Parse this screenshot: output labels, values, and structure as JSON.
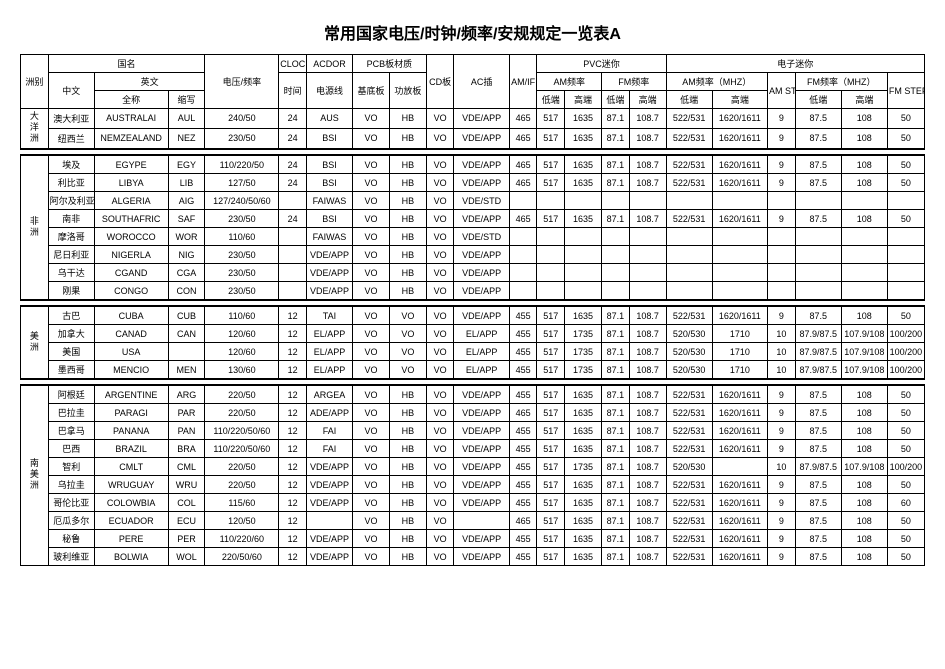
{
  "title": "常用国家电压/时钟/频率/安规规定一览表A",
  "headers": {
    "continent": "洲别",
    "country": "国名",
    "chinese": "中文",
    "english": "英文",
    "fullname": "全称",
    "abbr": "缩写",
    "voltage": "电压/频率",
    "clock": "CLOCK",
    "time": "时间",
    "acdor": "ACDOR",
    "powerline": "电源线",
    "pcb": "PCB板材质",
    "baseboard": "基底板",
    "ampboard": "功放板",
    "cdboard": "CD板",
    "acplug": "AC插",
    "amif": "AM/IF",
    "pvc": "PVC迷你",
    "amfreq": "AM频率",
    "fmfreq": "FM频率",
    "low": "低端",
    "high": "高端",
    "digital": "电子迷你",
    "amfreqmhz": "AM频率（MHZ）",
    "amstep": "AM STEP",
    "fmfreqmhz": "FM频率（MHZ）",
    "fmstep": "FM STEP"
  },
  "groups": [
    {
      "continent": "大洋洲",
      "rows": [
        {
          "cn": "澳大利亚",
          "en": "AUSTRALAI",
          "ab": "AUL",
          "v": "240/50",
          "t": "24",
          "pl": "AUS",
          "bb": "VO",
          "ab2": "HB",
          "cd": "VO",
          "ac": "VDE/APP",
          "amif": "465",
          "amL": "517",
          "amH": "1635",
          "fmL": "87.1",
          "fmH": "108.7",
          "damL": "522/531",
          "damH": "1620/1611",
          "ams": "9",
          "dfmL": "87.5",
          "dfmH": "108",
          "fms": "50"
        },
        {
          "cn": "纽西兰",
          "en": "NEMZEALAND",
          "ab": "NEZ",
          "v": "230/50",
          "t": "24",
          "pl": "BSI",
          "bb": "VO",
          "ab2": "HB",
          "cd": "VO",
          "ac": "VDE/APP",
          "amif": "465",
          "amL": "517",
          "amH": "1635",
          "fmL": "87.1",
          "fmH": "108.7",
          "damL": "522/531",
          "damH": "1620/1611",
          "ams": "9",
          "dfmL": "87.5",
          "dfmH": "108",
          "fms": "50"
        }
      ]
    },
    {
      "continent": "非洲",
      "rows": [
        {
          "cn": "埃及",
          "en": "EGYPE",
          "ab": "EGY",
          "v": "110/220/50",
          "t": "24",
          "pl": "BSI",
          "bb": "VO",
          "ab2": "HB",
          "cd": "VO",
          "ac": "VDE/APP",
          "amif": "465",
          "amL": "517",
          "amH": "1635",
          "fmL": "87.1",
          "fmH": "108.7",
          "damL": "522/531",
          "damH": "1620/1611",
          "ams": "9",
          "dfmL": "87.5",
          "dfmH": "108",
          "fms": "50"
        },
        {
          "cn": "利比亚",
          "en": "LIBYA",
          "ab": "LIB",
          "v": "127/50",
          "t": "24",
          "pl": "BSI",
          "bb": "VO",
          "ab2": "HB",
          "cd": "VO",
          "ac": "VDE/APP",
          "amif": "465",
          "amL": "517",
          "amH": "1635",
          "fmL": "87.1",
          "fmH": "108.7",
          "damL": "522/531",
          "damH": "1620/1611",
          "ams": "9",
          "dfmL": "87.5",
          "dfmH": "108",
          "fms": "50"
        },
        {
          "cn": "阿尔及利亚",
          "en": "ALGERIA",
          "ab": "AIG",
          "v": "127/240/50/60",
          "t": "",
          "pl": "FAIWAS",
          "bb": "VO",
          "ab2": "HB",
          "cd": "VO",
          "ac": "VDE/STD",
          "amif": "",
          "amL": "",
          "amH": "",
          "fmL": "",
          "fmH": "",
          "damL": "",
          "damH": "",
          "ams": "",
          "dfmL": "",
          "dfmH": "",
          "fms": ""
        },
        {
          "cn": "南非",
          "en": "SOUTHAFRIC",
          "ab": "SAF",
          "v": "230/50",
          "t": "24",
          "pl": "BSI",
          "bb": "VO",
          "ab2": "HB",
          "cd": "VO",
          "ac": "VDE/APP",
          "amif": "465",
          "amL": "517",
          "amH": "1635",
          "fmL": "87.1",
          "fmH": "108.7",
          "damL": "522/531",
          "damH": "1620/1611",
          "ams": "9",
          "dfmL": "87.5",
          "dfmH": "108",
          "fms": "50"
        },
        {
          "cn": "摩洛哥",
          "en": "WOROCCO",
          "ab": "WOR",
          "v": "110/60",
          "t": "",
          "pl": "FAIWAS",
          "bb": "VO",
          "ab2": "HB",
          "cd": "VO",
          "ac": "VDE/STD",
          "amif": "",
          "amL": "",
          "amH": "",
          "fmL": "",
          "fmH": "",
          "damL": "",
          "damH": "",
          "ams": "",
          "dfmL": "",
          "dfmH": "",
          "fms": ""
        },
        {
          "cn": "尼日利亚",
          "en": "NIGERLA",
          "ab": "NIG",
          "v": "230/50",
          "t": "",
          "pl": "VDE/APP",
          "bb": "VO",
          "ab2": "HB",
          "cd": "VO",
          "ac": "VDE/APP",
          "amif": "",
          "amL": "",
          "amH": "",
          "fmL": "",
          "fmH": "",
          "damL": "",
          "damH": "",
          "ams": "",
          "dfmL": "",
          "dfmH": "",
          "fms": ""
        },
        {
          "cn": "乌干达",
          "en": "CGAND",
          "ab": "CGA",
          "v": "230/50",
          "t": "",
          "pl": "VDE/APP",
          "bb": "VO",
          "ab2": "HB",
          "cd": "VO",
          "ac": "VDE/APP",
          "amif": "",
          "amL": "",
          "amH": "",
          "fmL": "",
          "fmH": "",
          "damL": "",
          "damH": "",
          "ams": "",
          "dfmL": "",
          "dfmH": "",
          "fms": ""
        },
        {
          "cn": "刚果",
          "en": "CONGO",
          "ab": "CON",
          "v": "230/50",
          "t": "",
          "pl": "VDE/APP",
          "bb": "VO",
          "ab2": "HB",
          "cd": "VO",
          "ac": "VDE/APP",
          "amif": "",
          "amL": "",
          "amH": "",
          "fmL": "",
          "fmH": "",
          "damL": "",
          "damH": "",
          "ams": "",
          "dfmL": "",
          "dfmH": "",
          "fms": ""
        }
      ]
    },
    {
      "continent": "美洲",
      "rows": [
        {
          "cn": "古巴",
          "en": "CUBA",
          "ab": "CUB",
          "v": "110/60",
          "t": "12",
          "pl": "TAI",
          "bb": "VO",
          "ab2": "VO",
          "cd": "VO",
          "ac": "VDE/APP",
          "amif": "455",
          "amL": "517",
          "amH": "1635",
          "fmL": "87.1",
          "fmH": "108.7",
          "damL": "522/531",
          "damH": "1620/1611",
          "ams": "9",
          "dfmL": "87.5",
          "dfmH": "108",
          "fms": "50"
        },
        {
          "cn": "加拿大",
          "en": "CANAD",
          "ab": "CAN",
          "v": "120/60",
          "t": "12",
          "pl": "EL/APP",
          "bb": "VO",
          "ab2": "VO",
          "cd": "VO",
          "ac": "EL/APP",
          "amif": "455",
          "amL": "517",
          "amH": "1735",
          "fmL": "87.1",
          "fmH": "108.7",
          "damL": "520/530",
          "damH": "1710",
          "ams": "10",
          "dfmL": "87.9/87.5",
          "dfmH": "107.9/108",
          "fms": "100/200"
        },
        {
          "cn": "美国",
          "en": "USA",
          "ab": "",
          "v": "120/60",
          "t": "12",
          "pl": "EL/APP",
          "bb": "VO",
          "ab2": "VO",
          "cd": "VO",
          "ac": "EL/APP",
          "amif": "455",
          "amL": "517",
          "amH": "1735",
          "fmL": "87.1",
          "fmH": "108.7",
          "damL": "520/530",
          "damH": "1710",
          "ams": "10",
          "dfmL": "87.9/87.5",
          "dfmH": "107.9/108",
          "fms": "100/200"
        },
        {
          "cn": "墨西哥",
          "en": "MENCIO",
          "ab": "MEN",
          "v": "130/60",
          "t": "12",
          "pl": "EL/APP",
          "bb": "VO",
          "ab2": "VO",
          "cd": "VO",
          "ac": "EL/APP",
          "amif": "455",
          "amL": "517",
          "amH": "1735",
          "fmL": "87.1",
          "fmH": "108.7",
          "damL": "520/530",
          "damH": "1710",
          "ams": "10",
          "dfmL": "87.9/87.5",
          "dfmH": "107.9/108",
          "fms": "100/200"
        }
      ]
    },
    {
      "continent": "南美洲",
      "rows": [
        {
          "cn": "阿根廷",
          "en": "ARGENTINE",
          "ab": "ARG",
          "v": "220/50",
          "t": "12",
          "pl": "ARGEA",
          "bb": "VO",
          "ab2": "HB",
          "cd": "VO",
          "ac": "VDE/APP",
          "amif": "455",
          "amL": "517",
          "amH": "1635",
          "fmL": "87.1",
          "fmH": "108.7",
          "damL": "522/531",
          "damH": "1620/1611",
          "ams": "9",
          "dfmL": "87.5",
          "dfmH": "108",
          "fms": "50"
        },
        {
          "cn": "巴拉圭",
          "en": "PARAGI",
          "ab": "PAR",
          "v": "220/50",
          "t": "12",
          "pl": "ADE/APP",
          "bb": "VO",
          "ab2": "HB",
          "cd": "VO",
          "ac": "VDE/APP",
          "amif": "465",
          "amL": "517",
          "amH": "1635",
          "fmL": "87.1",
          "fmH": "108.7",
          "damL": "522/531",
          "damH": "1620/1611",
          "ams": "9",
          "dfmL": "87.5",
          "dfmH": "108",
          "fms": "50"
        },
        {
          "cn": "巴拿马",
          "en": "PANANA",
          "ab": "PAN",
          "v": "110/220/50/60",
          "t": "12",
          "pl": "FAI",
          "bb": "VO",
          "ab2": "HB",
          "cd": "VO",
          "ac": "VDE/APP",
          "amif": "455",
          "amL": "517",
          "amH": "1635",
          "fmL": "87.1",
          "fmH": "108.7",
          "damL": "522/531",
          "damH": "1620/1611",
          "ams": "9",
          "dfmL": "87.5",
          "dfmH": "108",
          "fms": "50"
        },
        {
          "cn": "巴西",
          "en": "BRAZIL",
          "ab": "BRA",
          "v": "110/220/50/60",
          "t": "12",
          "pl": "FAI",
          "bb": "VO",
          "ab2": "HB",
          "cd": "VO",
          "ac": "VDE/APP",
          "amif": "455",
          "amL": "517",
          "amH": "1635",
          "fmL": "87.1",
          "fmH": "108.7",
          "damL": "522/531",
          "damH": "1620/1611",
          "ams": "9",
          "dfmL": "87.5",
          "dfmH": "108",
          "fms": "50"
        },
        {
          "cn": "智利",
          "en": "CMLT",
          "ab": "CML",
          "v": "220/50",
          "t": "12",
          "pl": "VDE/APP",
          "bb": "VO",
          "ab2": "HB",
          "cd": "VO",
          "ac": "VDE/APP",
          "amif": "455",
          "amL": "517",
          "amH": "1735",
          "fmL": "87.1",
          "fmH": "108.7",
          "damL": "520/530",
          "damH": "",
          "ams": "10",
          "dfmL": "87.9/87.5",
          "dfmH": "107.9/108",
          "fms": "100/200"
        },
        {
          "cn": "乌拉圭",
          "en": "WRUGUAY",
          "ab": "WRU",
          "v": "220/50",
          "t": "12",
          "pl": "VDE/APP",
          "bb": "VO",
          "ab2": "HB",
          "cd": "VO",
          "ac": "VDE/APP",
          "amif": "455",
          "amL": "517",
          "amH": "1635",
          "fmL": "87.1",
          "fmH": "108.7",
          "damL": "522/531",
          "damH": "1620/1611",
          "ams": "9",
          "dfmL": "87.5",
          "dfmH": "108",
          "fms": "50"
        },
        {
          "cn": "哥伦比亚",
          "en": "COLOWBIA",
          "ab": "COL",
          "v": "115/60",
          "t": "12",
          "pl": "VDE/APP",
          "bb": "VO",
          "ab2": "HB",
          "cd": "VO",
          "ac": "VDE/APP",
          "amif": "455",
          "amL": "517",
          "amH": "1635",
          "fmL": "87.1",
          "fmH": "108.7",
          "damL": "522/531",
          "damH": "1620/1611",
          "ams": "9",
          "dfmL": "87.5",
          "dfmH": "108",
          "fms": "60"
        },
        {
          "cn": "厄瓜多尔",
          "en": "ECUADOR",
          "ab": "ECU",
          "v": "120/50",
          "t": "12",
          "pl": "",
          "bb": "VO",
          "ab2": "HB",
          "cd": "VO",
          "ac": "",
          "amif": "465",
          "amL": "517",
          "amH": "1635",
          "fmL": "87.1",
          "fmH": "108.7",
          "damL": "522/531",
          "damH": "1620/1611",
          "ams": "9",
          "dfmL": "87.5",
          "dfmH": "108",
          "fms": "50"
        },
        {
          "cn": "秘鲁",
          "en": "PERE",
          "ab": "PER",
          "v": "110/220/60",
          "t": "12",
          "pl": "VDE/APP",
          "bb": "VO",
          "ab2": "HB",
          "cd": "VO",
          "ac": "VDE/APP",
          "amif": "455",
          "amL": "517",
          "amH": "1635",
          "fmL": "87.1",
          "fmH": "108.7",
          "damL": "522/531",
          "damH": "1620/1611",
          "ams": "9",
          "dfmL": "87.5",
          "dfmH": "108",
          "fms": "50"
        },
        {
          "cn": "玻利维亚",
          "en": "BOLWIA",
          "ab": "WOL",
          "v": "220/50/60",
          "t": "12",
          "pl": "VDE/APP",
          "bb": "VO",
          "ab2": "HB",
          "cd": "VO",
          "ac": "VDE/APP",
          "amif": "455",
          "amL": "517",
          "amH": "1635",
          "fmL": "87.1",
          "fmH": "108.7",
          "damL": "522/531",
          "damH": "1620/1611",
          "ams": "9",
          "dfmL": "87.5",
          "dfmH": "108",
          "fms": "50"
        }
      ]
    }
  ]
}
